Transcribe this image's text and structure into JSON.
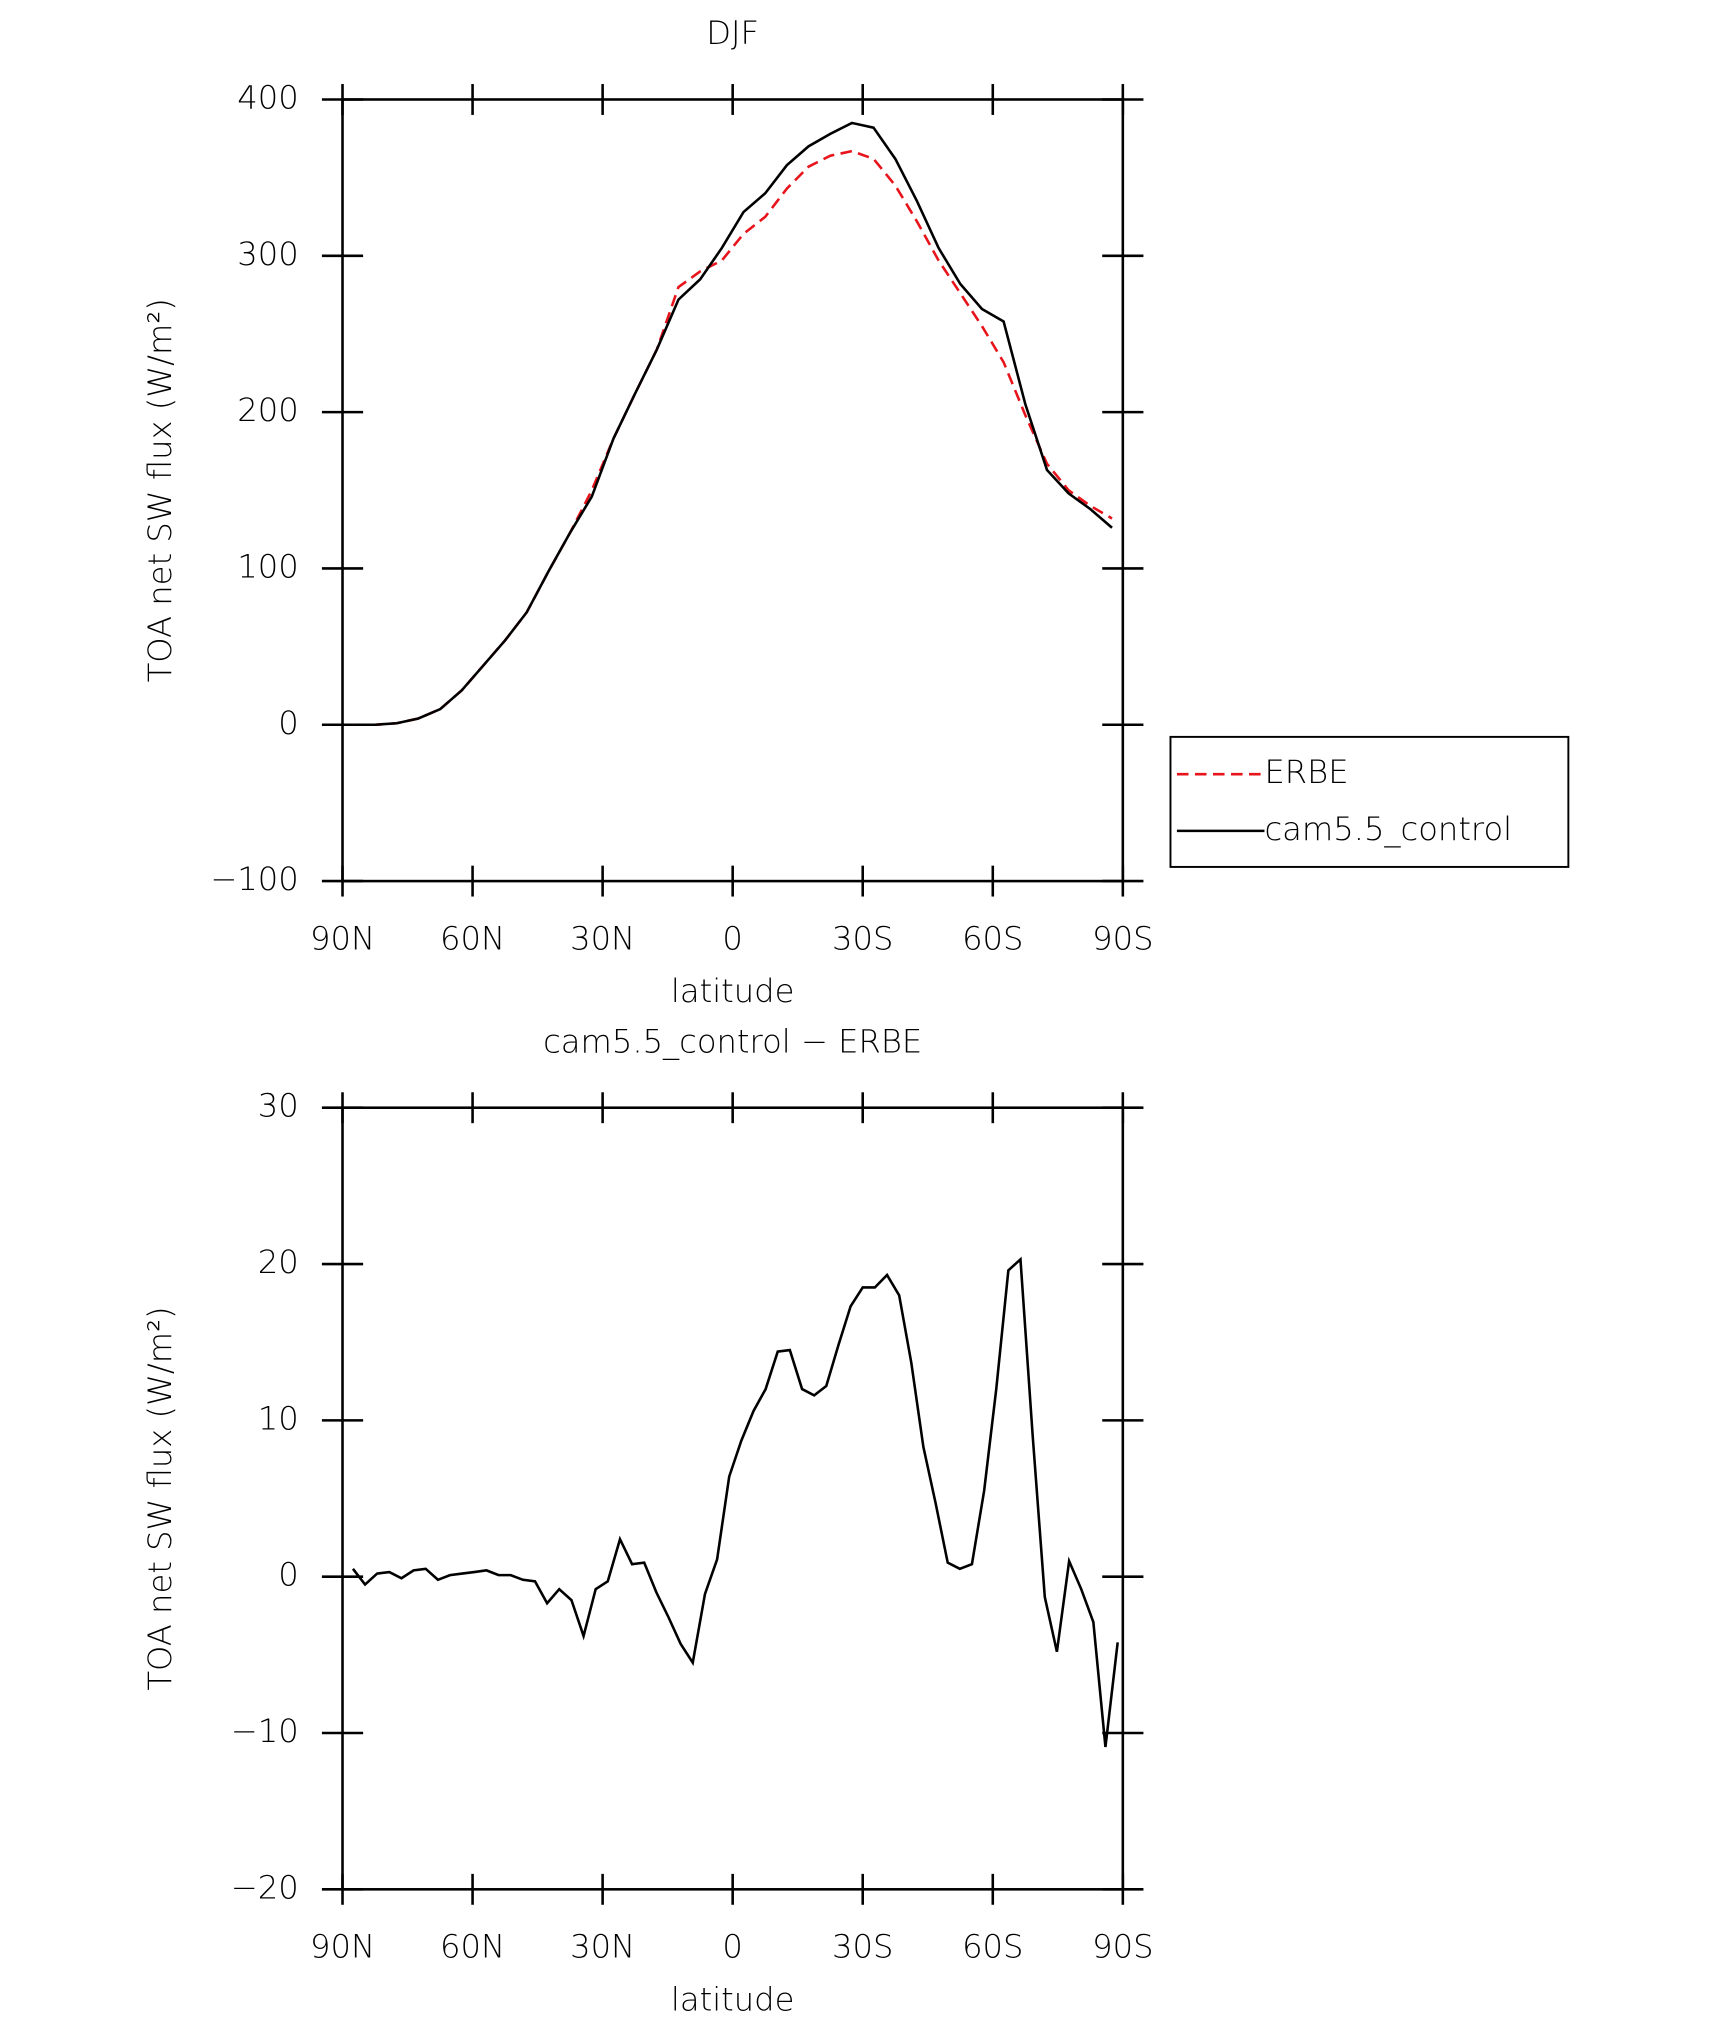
{
  "chart_data": [
    {
      "type": "line",
      "title": "DJF",
      "xlabel": "latitude",
      "ylabel": "TOA net SW flux (W/m²)",
      "x": [
        87.5,
        82.5,
        77.5,
        72.5,
        67.5,
        62.5,
        57.5,
        52.5,
        47.5,
        42.5,
        37.5,
        32.5,
        27.5,
        22.5,
        17.5,
        12.5,
        7.5,
        2.5,
        -2.5,
        -7.5,
        -12.5,
        -17.5,
        -22.5,
        -27.5,
        -32.5,
        -37.5,
        -42.5,
        -47.5,
        -52.5,
        -57.5,
        -62.5,
        -67.5,
        -72.5,
        -77.5,
        -82.5,
        -87.5
      ],
      "series": [
        {
          "name": "ERBE",
          "color": "#e8141c",
          "linestyle": "dashed",
          "values": [
            0,
            0,
            1,
            4,
            10,
            22,
            38,
            54,
            72,
            98,
            123,
            150,
            183,
            212,
            240,
            280,
            290,
            297,
            314,
            325,
            343,
            357,
            364,
            367,
            362,
            345,
            322,
            297,
            276,
            255,
            232,
            198,
            167,
            150,
            140,
            132
          ]
        },
        {
          "name": "cam5.5_control",
          "color": "#000000",
          "linestyle": "solid",
          "values": [
            0,
            0,
            1,
            4,
            10,
            22,
            38,
            54,
            72,
            98,
            123,
            146,
            183,
            212,
            240,
            272,
            285,
            305,
            328,
            340,
            358,
            370,
            378,
            385,
            382,
            362,
            335,
            305,
            282,
            266,
            258,
            205,
            163,
            148,
            138,
            126
          ]
        }
      ],
      "xlim": [
        90,
        -90
      ],
      "xticks": [
        {
          "value": 90,
          "label": "90N"
        },
        {
          "value": 60,
          "label": "60N"
        },
        {
          "value": 30,
          "label": "30N"
        },
        0,
        {
          "value": -30,
          "label": "30S"
        },
        {
          "value": -60,
          "label": "60S"
        },
        {
          "value": -90,
          "label": "90S"
        }
      ],
      "ylim": [
        -100,
        400
      ],
      "yticks": [
        {
          "value": -100,
          "label": "−100"
        },
        0,
        100,
        200,
        300,
        400
      ],
      "legend": "right"
    },
    {
      "type": "line",
      "title": "cam5.5_control − ERBE",
      "xlabel": "latitude",
      "ylabel": "TOA net SW flux (W/m²)",
      "x": [
        87.6,
        84.8,
        82.0,
        79.2,
        76.4,
        73.6,
        70.8,
        68.0,
        65.2,
        62.4,
        59.6,
        56.8,
        54.0,
        51.2,
        48.4,
        45.6,
        42.8,
        40.0,
        37.2,
        34.4,
        31.6,
        28.8,
        26.0,
        23.2,
        20.4,
        17.6,
        14.8,
        12.0,
        9.2,
        6.4,
        3.6,
        0.8,
        -2.0,
        -4.8,
        -7.6,
        -10.4,
        -13.2,
        -16.0,
        -18.8,
        -21.6,
        -24.4,
        -27.2,
        -30.0,
        -32.8,
        -35.6,
        -38.4,
        -41.2,
        -44.0,
        -46.8,
        -49.6,
        -52.4,
        -55.2,
        -58.0,
        -60.8,
        -63.6,
        -66.4,
        -69.2,
        -72.0,
        -74.8,
        -77.6,
        -80.4,
        -83.2,
        -86.0,
        -88.8
      ],
      "series": [
        {
          "color": "#000000",
          "linestyle": "solid",
          "values": [
            0.5,
            -0.5,
            0.2,
            0.3,
            -0.1,
            0.4,
            0.5,
            -0.2,
            0.1,
            0.2,
            0.3,
            0.4,
            0.1,
            0.1,
            -0.2,
            -0.3,
            -1.7,
            -0.8,
            -1.5,
            -3.8,
            -0.8,
            -0.3,
            2.4,
            0.8,
            0.9,
            -1.0,
            -2.6,
            -4.3,
            -5.5,
            -1.1,
            1.1,
            6.4,
            8.7,
            10.6,
            12.0,
            14.4,
            14.5,
            12.0,
            11.6,
            12.2,
            14.8,
            17.3,
            18.5,
            18.5,
            19.3,
            18.0,
            13.7,
            8.3,
            4.7,
            0.9,
            0.5,
            0.8,
            5.5,
            12.0,
            19.6,
            20.3,
            9.0,
            -1.3,
            -4.8,
            1.0,
            -0.8,
            -2.9,
            -10.9,
            -4.2
          ]
        }
      ],
      "xlim": [
        90,
        -90
      ],
      "xticks": [
        {
          "value": 90,
          "label": "90N"
        },
        {
          "value": 60,
          "label": "60N"
        },
        {
          "value": 30,
          "label": "30N"
        },
        0,
        {
          "value": -30,
          "label": "30S"
        },
        {
          "value": -60,
          "label": "60S"
        },
        {
          "value": -90,
          "label": "90S"
        }
      ],
      "ylim": [
        -20,
        30
      ],
      "yticks": [
        {
          "value": -20,
          "label": "−20"
        },
        {
          "value": -10,
          "label": "−10"
        },
        0,
        10,
        20,
        30
      ]
    }
  ]
}
